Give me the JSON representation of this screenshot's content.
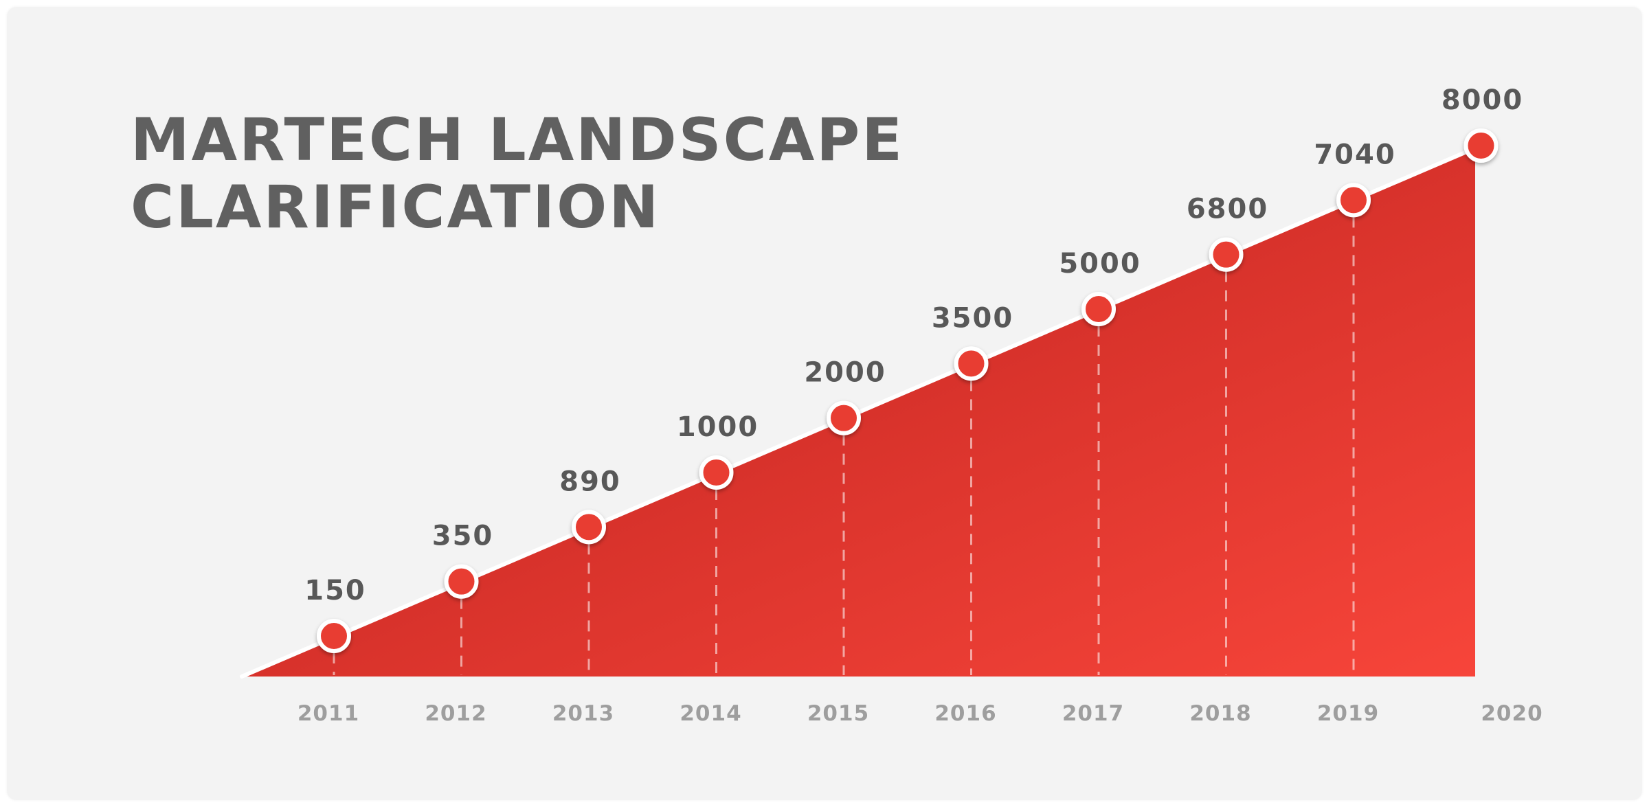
{
  "title_lines": [
    "MARTECH LANDSCAPE",
    "CLARIFICATION"
  ],
  "chart_data": {
    "type": "area",
    "title": "MARTECH LANDSCAPE CLARIFICATION",
    "categories": [
      "2011",
      "2012",
      "2013",
      "2014",
      "2015",
      "2016",
      "2017",
      "2018",
      "2019",
      "2020"
    ],
    "series": [
      {
        "values": [
          150,
          350,
          890,
          1000,
          2000,
          3500,
          5000,
          6800,
          7040,
          8000
        ]
      }
    ],
    "data_labels": [
      "150",
      "350",
      "890",
      "1000",
      "2000",
      "3500",
      "5000",
      "6800",
      "7040",
      "8000"
    ],
    "grid": false,
    "legend": "none",
    "colors": {
      "fill_light": "#f7453a",
      "fill_dark": "#b81f1c",
      "marker": "#e83c32",
      "marker_stroke": "#ffffff",
      "line": "#ffffff"
    }
  }
}
